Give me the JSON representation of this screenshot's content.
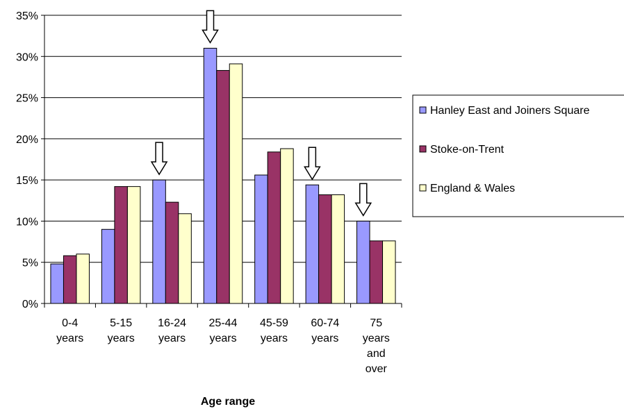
{
  "chart_data": {
    "type": "bar",
    "title": "",
    "xlabel": "Age range",
    "ylabel": "",
    "ylim": [
      0,
      35
    ],
    "yticks": [
      "0%",
      "5%",
      "10%",
      "15%",
      "20%",
      "25%",
      "30%",
      "35%"
    ],
    "categories": [
      [
        "0-4",
        "years"
      ],
      [
        "5-15",
        "years"
      ],
      [
        "16-24",
        "years"
      ],
      [
        "25-44",
        "years"
      ],
      [
        "45-59",
        "years"
      ],
      [
        "60-74",
        "years"
      ],
      [
        "75",
        "years",
        "and",
        "over"
      ]
    ],
    "series": [
      {
        "name": "Hanley East and Joiners Square",
        "color": "#9999ff",
        "values": [
          4.8,
          9.0,
          15.0,
          31.0,
          15.6,
          14.4,
          10.0
        ]
      },
      {
        "name": "Stoke-on-Trent",
        "color": "#993366",
        "values": [
          5.8,
          14.2,
          12.3,
          28.3,
          18.4,
          13.2,
          7.6
        ]
      },
      {
        "name": "England & Wales",
        "color": "#ffffcc",
        "values": [
          6.0,
          14.2,
          10.9,
          29.1,
          18.8,
          13.2,
          7.6
        ]
      }
    ],
    "annotations": {
      "type": "down-arrow",
      "categories": [
        "16-24 years",
        "25-44 years",
        "60-74 years",
        "75 years and over"
      ]
    },
    "grid": "horizontal",
    "legend": {
      "position": "right"
    }
  }
}
